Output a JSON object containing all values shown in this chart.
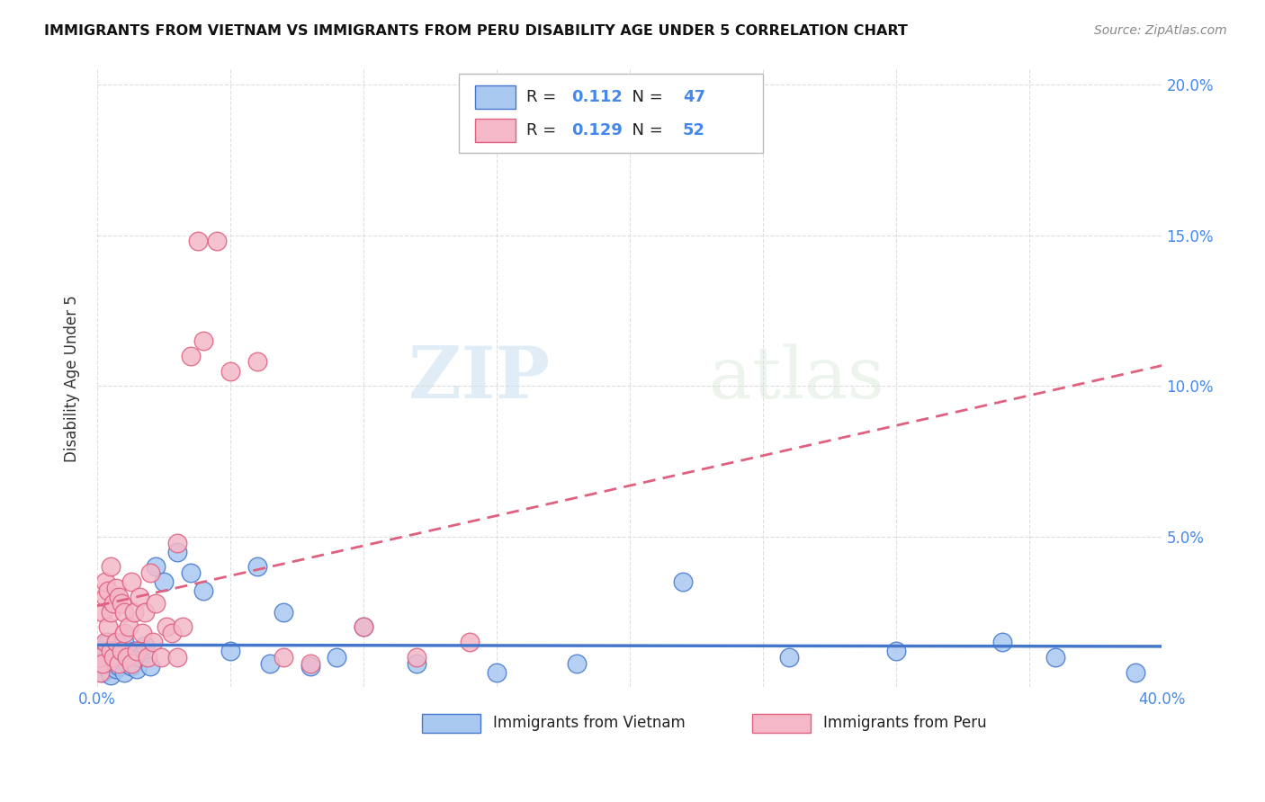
{
  "title": "IMMIGRANTS FROM VIETNAM VS IMMIGRANTS FROM PERU DISABILITY AGE UNDER 5 CORRELATION CHART",
  "source": "Source: ZipAtlas.com",
  "ylabel": "Disability Age Under 5",
  "xlim": [
    0.0,
    0.4
  ],
  "ylim": [
    0.0,
    0.205
  ],
  "xticks": [
    0.0,
    0.05,
    0.1,
    0.15,
    0.2,
    0.25,
    0.3,
    0.35,
    0.4
  ],
  "yticks": [
    0.0,
    0.05,
    0.1,
    0.15,
    0.2
  ],
  "color_vietnam": "#a8c8f0",
  "color_peru": "#f4b8c8",
  "line_color_vietnam": "#4477cc",
  "line_color_peru": "#e06080",
  "R_vietnam": "0.112",
  "N_vietnam": "47",
  "R_peru": "0.129",
  "N_peru": "52",
  "vietnam_x": [
    0.001,
    0.002,
    0.002,
    0.003,
    0.003,
    0.004,
    0.004,
    0.005,
    0.005,
    0.006,
    0.006,
    0.007,
    0.007,
    0.008,
    0.008,
    0.009,
    0.01,
    0.01,
    0.011,
    0.012,
    0.013,
    0.014,
    0.015,
    0.016,
    0.018,
    0.02,
    0.022,
    0.025,
    0.03,
    0.035,
    0.04,
    0.05,
    0.06,
    0.065,
    0.07,
    0.08,
    0.09,
    0.1,
    0.12,
    0.15,
    0.18,
    0.22,
    0.26,
    0.3,
    0.34,
    0.36,
    0.39
  ],
  "vietnam_y": [
    0.008,
    0.005,
    0.01,
    0.007,
    0.012,
    0.006,
    0.015,
    0.004,
    0.01,
    0.008,
    0.013,
    0.006,
    0.009,
    0.007,
    0.012,
    0.01,
    0.005,
    0.015,
    0.008,
    0.01,
    0.007,
    0.012,
    0.006,
    0.01,
    0.014,
    0.007,
    0.04,
    0.035,
    0.045,
    0.038,
    0.032,
    0.012,
    0.04,
    0.008,
    0.025,
    0.007,
    0.01,
    0.02,
    0.008,
    0.005,
    0.008,
    0.035,
    0.01,
    0.012,
    0.015,
    0.01,
    0.005
  ],
  "peru_x": [
    0.001,
    0.001,
    0.002,
    0.002,
    0.003,
    0.003,
    0.003,
    0.004,
    0.004,
    0.005,
    0.005,
    0.005,
    0.006,
    0.006,
    0.007,
    0.007,
    0.008,
    0.008,
    0.009,
    0.009,
    0.01,
    0.01,
    0.011,
    0.012,
    0.013,
    0.013,
    0.014,
    0.015,
    0.016,
    0.017,
    0.018,
    0.019,
    0.02,
    0.021,
    0.022,
    0.024,
    0.026,
    0.028,
    0.03,
    0.032,
    0.035,
    0.038,
    0.04,
    0.045,
    0.05,
    0.06,
    0.07,
    0.08,
    0.1,
    0.12,
    0.14,
    0.03
  ],
  "peru_y": [
    0.005,
    0.01,
    0.008,
    0.025,
    0.015,
    0.03,
    0.035,
    0.02,
    0.032,
    0.012,
    0.025,
    0.04,
    0.01,
    0.028,
    0.015,
    0.033,
    0.008,
    0.03,
    0.012,
    0.028,
    0.018,
    0.025,
    0.01,
    0.02,
    0.035,
    0.008,
    0.025,
    0.012,
    0.03,
    0.018,
    0.025,
    0.01,
    0.038,
    0.015,
    0.028,
    0.01,
    0.02,
    0.018,
    0.01,
    0.02,
    0.11,
    0.148,
    0.115,
    0.148,
    0.105,
    0.108,
    0.01,
    0.008,
    0.02,
    0.01,
    0.015,
    0.048
  ],
  "watermark_zip": "ZIP",
  "watermark_atlas": "atlas",
  "background_color": "#ffffff",
  "grid_color": "#dddddd",
  "tick_color": "#4488ee",
  "label_color": "#333333"
}
